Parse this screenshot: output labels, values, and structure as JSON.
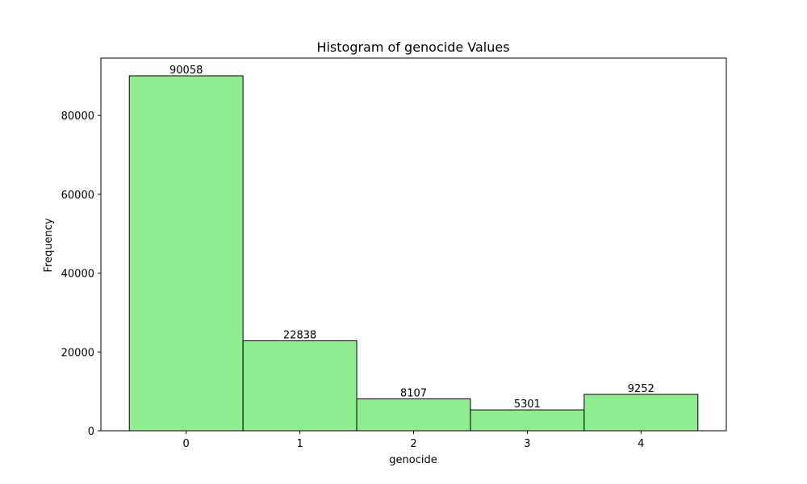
{
  "chart_data": {
    "type": "bar",
    "title": "Histogram of genocide Values",
    "xlabel": "genocide",
    "ylabel": "Frequency",
    "categories": [
      "0",
      "1",
      "2",
      "3",
      "4"
    ],
    "values": [
      90058,
      22838,
      8107,
      5301,
      9252
    ],
    "data_labels": [
      "90058",
      "22838",
      "8107",
      "5301",
      "9252"
    ],
    "x_ticks": [
      "0",
      "1",
      "2",
      "3",
      "4"
    ],
    "y_ticks": [
      0,
      20000,
      40000,
      60000,
      80000
    ],
    "y_tick_labels": [
      "0",
      "20000",
      "40000",
      "60000",
      "80000"
    ],
    "ylim": [
      0,
      94561
    ],
    "xlim": [
      -0.75,
      4.75
    ],
    "grid": false,
    "bar_color": "#90ee90",
    "edge_color": "#000000"
  }
}
